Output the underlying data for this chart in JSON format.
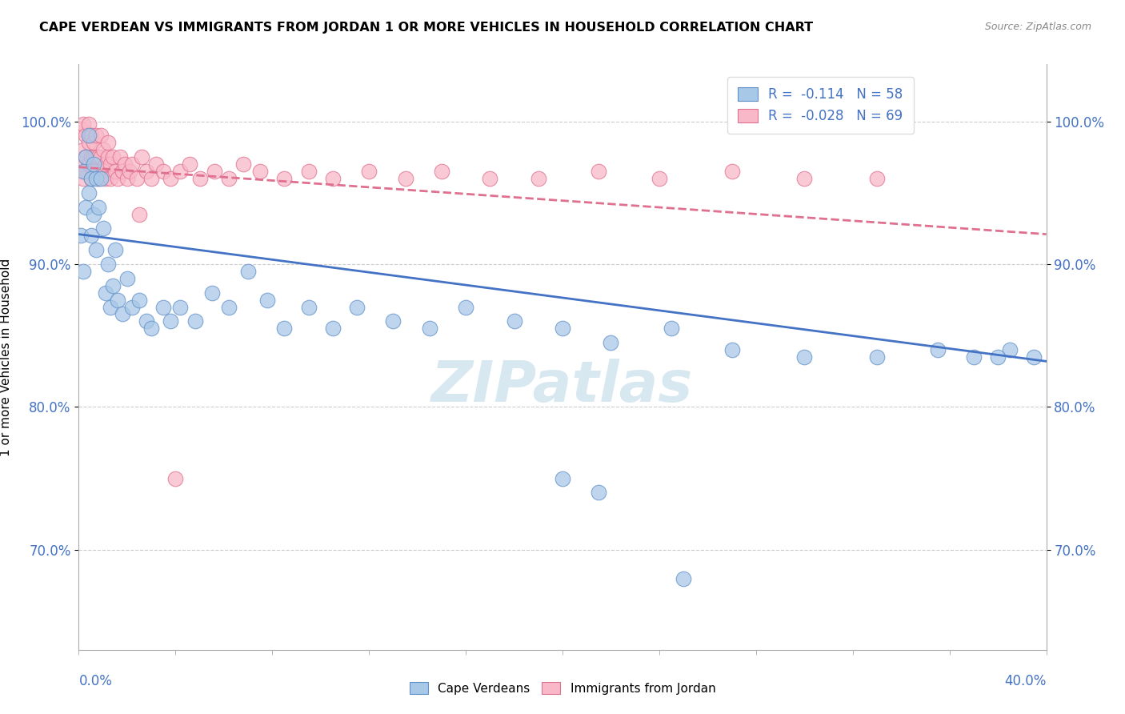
{
  "title": "CAPE VERDEAN VS IMMIGRANTS FROM JORDAN 1 OR MORE VEHICLES IN HOUSEHOLD CORRELATION CHART",
  "source": "Source: ZipAtlas.com",
  "ylabel": "1 or more Vehicles in Household",
  "ytick_labels": [
    "70.0%",
    "80.0%",
    "90.0%",
    "100.0%"
  ],
  "ytick_values": [
    0.7,
    0.8,
    0.9,
    1.0
  ],
  "xlim": [
    0.0,
    0.4
  ],
  "ylim": [
    0.63,
    1.04
  ],
  "legend_blue_r": "R =  -0.114",
  "legend_blue_n": "N = 58",
  "legend_pink_r": "R =  -0.028",
  "legend_pink_n": "N = 69",
  "blue_color": "#a8c8e8",
  "pink_color": "#f8b8c8",
  "blue_edge_color": "#6090c8",
  "pink_edge_color": "#e07090",
  "blue_line_color": "#4472c4",
  "pink_line_color": "#e07090",
  "tick_color": "#4472c4",
  "background_color": "#ffffff",
  "grid_color": "#cccccc",
  "blue_scatter_x": [
    0.001,
    0.002,
    0.002,
    0.003,
    0.003,
    0.004,
    0.004,
    0.005,
    0.005,
    0.006,
    0.006,
    0.007,
    0.007,
    0.008,
    0.009,
    0.01,
    0.011,
    0.012,
    0.013,
    0.014,
    0.015,
    0.016,
    0.018,
    0.02,
    0.022,
    0.025,
    0.028,
    0.03,
    0.035,
    0.038,
    0.042,
    0.048,
    0.055,
    0.062,
    0.07,
    0.078,
    0.085,
    0.095,
    0.105,
    0.115,
    0.13,
    0.145,
    0.16,
    0.18,
    0.2,
    0.22,
    0.245,
    0.27,
    0.3,
    0.33,
    0.355,
    0.37,
    0.385,
    0.395,
    0.2,
    0.215,
    0.25,
    0.38
  ],
  "blue_scatter_y": [
    0.92,
    0.965,
    0.895,
    0.975,
    0.94,
    0.99,
    0.95,
    0.96,
    0.92,
    0.97,
    0.935,
    0.96,
    0.91,
    0.94,
    0.96,
    0.925,
    0.88,
    0.9,
    0.87,
    0.885,
    0.91,
    0.875,
    0.865,
    0.89,
    0.87,
    0.875,
    0.86,
    0.855,
    0.87,
    0.86,
    0.87,
    0.86,
    0.88,
    0.87,
    0.895,
    0.875,
    0.855,
    0.87,
    0.855,
    0.87,
    0.86,
    0.855,
    0.87,
    0.86,
    0.855,
    0.845,
    0.855,
    0.84,
    0.835,
    0.835,
    0.84,
    0.835,
    0.84,
    0.835,
    0.75,
    0.74,
    0.68,
    0.835
  ],
  "pink_scatter_x": [
    0.001,
    0.001,
    0.002,
    0.002,
    0.002,
    0.003,
    0.003,
    0.003,
    0.004,
    0.004,
    0.004,
    0.005,
    0.005,
    0.005,
    0.006,
    0.006,
    0.006,
    0.007,
    0.007,
    0.008,
    0.008,
    0.009,
    0.009,
    0.01,
    0.01,
    0.011,
    0.011,
    0.012,
    0.012,
    0.013,
    0.013,
    0.014,
    0.015,
    0.016,
    0.017,
    0.018,
    0.019,
    0.02,
    0.021,
    0.022,
    0.024,
    0.026,
    0.028,
    0.03,
    0.032,
    0.035,
    0.038,
    0.042,
    0.046,
    0.05,
    0.056,
    0.062,
    0.068,
    0.075,
    0.085,
    0.095,
    0.105,
    0.12,
    0.135,
    0.15,
    0.17,
    0.19,
    0.215,
    0.24,
    0.27,
    0.3,
    0.33,
    0.025,
    0.04
  ],
  "pink_scatter_y": [
    0.97,
    0.995,
    0.98,
    0.96,
    0.998,
    0.975,
    0.99,
    0.965,
    0.985,
    0.97,
    0.998,
    0.975,
    0.96,
    0.99,
    0.975,
    0.985,
    0.965,
    0.975,
    0.99,
    0.975,
    0.96,
    0.975,
    0.99,
    0.965,
    0.98,
    0.97,
    0.96,
    0.975,
    0.985,
    0.97,
    0.96,
    0.975,
    0.965,
    0.96,
    0.975,
    0.965,
    0.97,
    0.96,
    0.965,
    0.97,
    0.96,
    0.975,
    0.965,
    0.96,
    0.97,
    0.965,
    0.96,
    0.965,
    0.97,
    0.96,
    0.965,
    0.96,
    0.97,
    0.965,
    0.96,
    0.965,
    0.96,
    0.965,
    0.96,
    0.965,
    0.96,
    0.96,
    0.965,
    0.96,
    0.965,
    0.96,
    0.96,
    0.935,
    0.75
  ],
  "blue_line_x": [
    0.0,
    0.4
  ],
  "blue_line_y": [
    0.921,
    0.832
  ],
  "pink_line_x": [
    0.0,
    0.4
  ],
  "pink_line_y": [
    0.968,
    0.921
  ],
  "watermark": "ZIPatlas",
  "watermark_color": "#d8e8f0"
}
